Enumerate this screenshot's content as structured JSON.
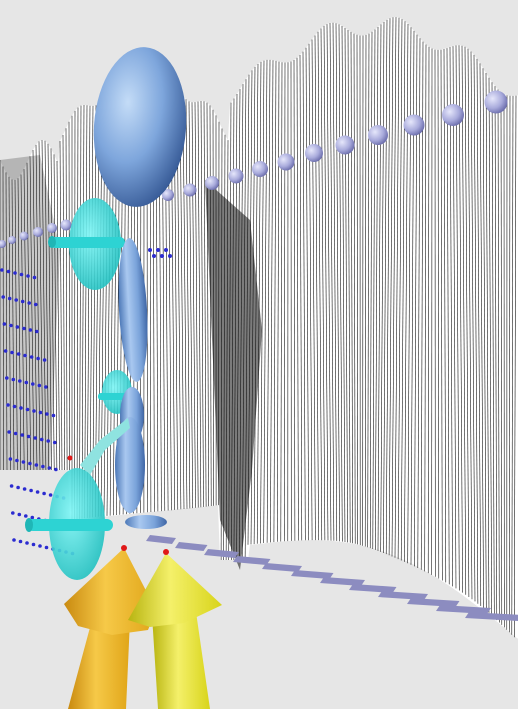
{
  "scene": {
    "background_color": "#e6e6e6",
    "mesh_line_color": "#000000",
    "mesh_fill_color": "#ffffff",
    "lavender_sphere_color": "#a9abdc",
    "blue_dot_color": "#2b2bd0",
    "body_segment_color": "#7fa6dc",
    "joint_disc_color": "#27e3e3",
    "arrow_orange_color": "#f2b81c",
    "arrow_yellow_color": "#e6e020",
    "marker_red_color": "#e01818",
    "floor_bar_color": "#8c8cc0"
  }
}
